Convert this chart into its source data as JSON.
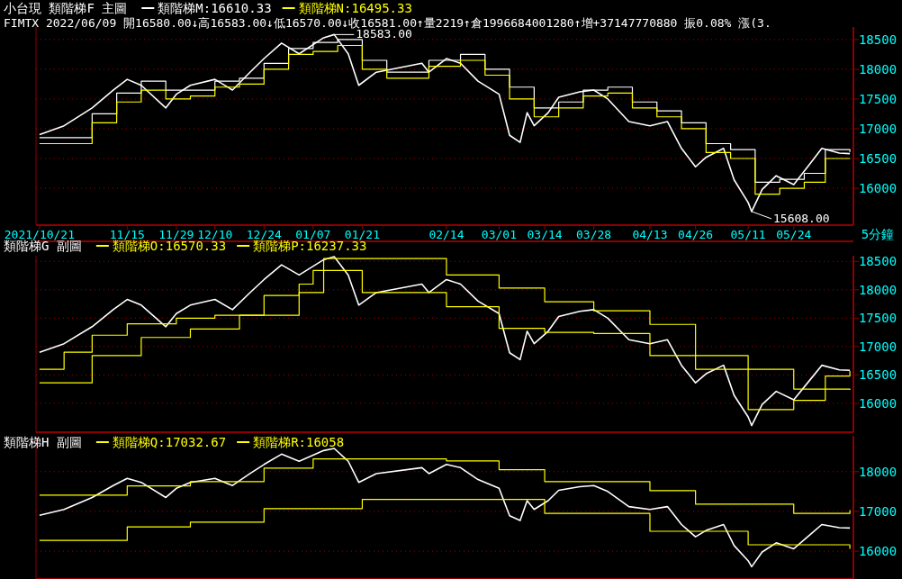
{
  "chart_data": [
    {
      "type": "line",
      "title": "小台現 類階梯F 主圖",
      "subtitle": "FIMTX 2022/06/09 開16580.00↓高16583.00↓低16570.00↓收16581.00↑量2219↑倉1996684001280↑增+37147770880 振0.08% 漲(3.",
      "xlabel": "5分鐘",
      "xlim": [
        "2021-10-20",
        "2022-06-10"
      ],
      "xticks": [
        {
          "value": "2021-10-21",
          "label": "2021/10/21"
        },
        {
          "value": "2021-11-15",
          "label": "11/15"
        },
        {
          "value": "2021-11-29",
          "label": "11/29"
        },
        {
          "value": "2021-12-10",
          "label": "12/10"
        },
        {
          "value": "2021-12-24",
          "label": "12/24"
        },
        {
          "value": "2022-01-07",
          "label": "01/07"
        },
        {
          "value": "2022-01-21",
          "label": "01/21"
        },
        {
          "value": "2022-02-14",
          "label": "02/14"
        },
        {
          "value": "2022-03-01",
          "label": "03/01"
        },
        {
          "value": "2022-03-14",
          "label": "03/14"
        },
        {
          "value": "2022-03-28",
          "label": "03/28"
        },
        {
          "value": "2022-04-13",
          "label": "04/13"
        },
        {
          "value": "2022-04-26",
          "label": "04/26"
        },
        {
          "value": "2022-05-11",
          "label": "05/11"
        },
        {
          "value": "2022-05-24",
          "label": "05/24"
        }
      ],
      "ylim": [
        15380,
        18710
      ],
      "yticks": [
        16000,
        16500,
        17000,
        17500,
        18000,
        18500
      ],
      "grid": "y",
      "legend": "top left",
      "annotations": [
        {
          "text": "18583.00",
          "x": "2022-01-13",
          "y": 18583
        },
        {
          "text": "15608.00",
          "x": "2022-05-12",
          "y": 15608
        }
      ],
      "series": [
        {
          "type": "line",
          "color": "#ffffff",
          "x": [
            "2021-10-21",
            "2021-10-28",
            "2021-11-05",
            "2021-11-11",
            "2021-11-15",
            "2021-11-19",
            "2021-11-26",
            "2021-11-29",
            "2021-12-03",
            "2021-12-10",
            "2021-12-15",
            "2021-12-20",
            "2021-12-24",
            "2021-12-29",
            "2022-01-03",
            "2022-01-10",
            "2022-01-13",
            "2022-01-17",
            "2022-01-20",
            "2022-01-25",
            "2022-02-07",
            "2022-02-09",
            "2022-02-14",
            "2022-02-18",
            "2022-02-23",
            "2022-03-01",
            "2022-03-04",
            "2022-03-07",
            "2022-03-09",
            "2022-03-11",
            "2022-03-15",
            "2022-03-18",
            "2022-03-24",
            "2022-03-28",
            "2022-04-01",
            "2022-04-07",
            "2022-04-13",
            "2022-04-18",
            "2022-04-22",
            "2022-04-26",
            "2022-04-29",
            "2022-05-04",
            "2022-05-07",
            "2022-05-11",
            "2022-05-12",
            "2022-05-15",
            "2022-05-19",
            "2022-05-24",
            "2022-05-29",
            "2022-06-01",
            "2022-06-06",
            "2022-06-09"
          ],
          "values": [
            16900,
            17050,
            17350,
            17650,
            17830,
            17730,
            17350,
            17580,
            17730,
            17830,
            17650,
            17950,
            18180,
            18440,
            18260,
            18530,
            18583,
            18260,
            17730,
            17950,
            18100,
            17950,
            18180,
            18100,
            17800,
            17580,
            16890,
            16770,
            17270,
            17050,
            17270,
            17530,
            17620,
            17650,
            17500,
            17120,
            17050,
            17120,
            16670,
            16360,
            16520,
            16670,
            16140,
            15760,
            15608,
            15980,
            16210,
            16060,
            16440,
            16670,
            16590,
            16581
          ]
        },
        {
          "type": "step",
          "name": "類階梯M:16610.33",
          "color": "#ffffff",
          "x": [
            "2021-10-21",
            "2021-11-05",
            "2021-11-12",
            "2021-11-19",
            "2021-11-26",
            "2021-12-03",
            "2021-12-10",
            "2021-12-17",
            "2021-12-24",
            "2021-12-31",
            "2022-01-07",
            "2022-01-14",
            "2022-01-21",
            "2022-01-28",
            "2022-02-09",
            "2022-02-18",
            "2022-02-25",
            "2022-03-04",
            "2022-03-11",
            "2022-03-18",
            "2022-03-25",
            "2022-04-01",
            "2022-04-08",
            "2022-04-15",
            "2022-04-22",
            "2022-04-29",
            "2022-05-06",
            "2022-05-13",
            "2022-05-20",
            "2022-05-27",
            "2022-06-02",
            "2022-06-09"
          ],
          "values": [
            16850,
            17250,
            17600,
            17800,
            17650,
            17650,
            17800,
            17850,
            18100,
            18350,
            18450,
            18500,
            18150,
            17950,
            18150,
            18250,
            18000,
            17700,
            17350,
            17450,
            17650,
            17700,
            17450,
            17300,
            17100,
            16750,
            16650,
            16100,
            16150,
            16250,
            16650,
            16610
          ]
        },
        {
          "type": "step",
          "name": "類階梯N:16495.33",
          "color": "#ffff00",
          "x": [
            "2021-10-21",
            "2021-11-05",
            "2021-11-12",
            "2021-11-19",
            "2021-11-26",
            "2021-12-03",
            "2021-12-10",
            "2021-12-17",
            "2021-12-24",
            "2021-12-31",
            "2022-01-07",
            "2022-01-14",
            "2022-01-21",
            "2022-01-28",
            "2022-02-09",
            "2022-02-18",
            "2022-02-25",
            "2022-03-04",
            "2022-03-11",
            "2022-03-18",
            "2022-03-25",
            "2022-04-01",
            "2022-04-08",
            "2022-04-15",
            "2022-04-22",
            "2022-04-29",
            "2022-05-06",
            "2022-05-13",
            "2022-05-20",
            "2022-05-27",
            "2022-06-02",
            "2022-06-09"
          ],
          "values": [
            16750,
            17100,
            17450,
            17650,
            17500,
            17550,
            17700,
            17750,
            18000,
            18250,
            18300,
            18400,
            18000,
            17850,
            18050,
            18150,
            17900,
            17500,
            17200,
            17350,
            17550,
            17600,
            17350,
            17200,
            17000,
            16600,
            16500,
            15900,
            16000,
            16100,
            16500,
            16495
          ]
        }
      ]
    },
    {
      "type": "line",
      "title": "類階梯G 副圖",
      "xlim": [
        "2021-10-20",
        "2022-06-10"
      ],
      "ylim": [
        15490,
        18600
      ],
      "yticks": [
        16000,
        16500,
        17000,
        17500,
        18000,
        18500
      ],
      "grid": "y",
      "legend": "top left",
      "tick_labels": "y",
      "series": [
        {
          "type": "line",
          "color": "#ffffff",
          "x": [
            "2021-10-21",
            "2021-10-28",
            "2021-11-05",
            "2021-11-11",
            "2021-11-15",
            "2021-11-19",
            "2021-11-26",
            "2021-11-29",
            "2021-12-03",
            "2021-12-10",
            "2021-12-15",
            "2021-12-20",
            "2021-12-24",
            "2021-12-29",
            "2022-01-03",
            "2022-01-10",
            "2022-01-13",
            "2022-01-17",
            "2022-01-20",
            "2022-01-25",
            "2022-02-07",
            "2022-02-09",
            "2022-02-14",
            "2022-02-18",
            "2022-02-23",
            "2022-03-01",
            "2022-03-04",
            "2022-03-07",
            "2022-03-09",
            "2022-03-11",
            "2022-03-15",
            "2022-03-18",
            "2022-03-24",
            "2022-03-28",
            "2022-04-01",
            "2022-04-07",
            "2022-04-13",
            "2022-04-18",
            "2022-04-22",
            "2022-04-26",
            "2022-04-29",
            "2022-05-04",
            "2022-05-07",
            "2022-05-11",
            "2022-05-12",
            "2022-05-15",
            "2022-05-19",
            "2022-05-24",
            "2022-05-29",
            "2022-06-01",
            "2022-06-06",
            "2022-06-09"
          ],
          "values": [
            16900,
            17050,
            17350,
            17650,
            17830,
            17730,
            17350,
            17580,
            17730,
            17830,
            17650,
            17950,
            18180,
            18440,
            18260,
            18530,
            18583,
            18260,
            17730,
            17950,
            18100,
            17950,
            18180,
            18100,
            17800,
            17580,
            16890,
            16770,
            17270,
            17050,
            17270,
            17530,
            17620,
            17650,
            17500,
            17120,
            17050,
            17120,
            16670,
            16360,
            16520,
            16670,
            16140,
            15760,
            15608,
            15980,
            16210,
            16060,
            16440,
            16670,
            16590,
            16581
          ]
        },
        {
          "type": "step",
          "name": "類階梯O:16570.33",
          "color": "#ffff00",
          "x": [
            "2021-10-21",
            "2021-10-28",
            "2021-11-05",
            "2021-11-15",
            "2021-11-29",
            "2021-12-10",
            "2021-12-24",
            "2022-01-03",
            "2022-01-07",
            "2022-01-21",
            "2022-02-14",
            "2022-03-01",
            "2022-03-14",
            "2022-03-28",
            "2022-04-13",
            "2022-04-26",
            "2022-05-11",
            "2022-05-24",
            "2022-06-02",
            "2022-06-09"
          ],
          "values": [
            16600,
            16900,
            17200,
            17400,
            17500,
            17550,
            17900,
            18100,
            18340,
            17950,
            17700,
            17320,
            17250,
            17230,
            16840,
            16600,
            15890,
            16050,
            16480,
            16570
          ]
        },
        {
          "type": "step",
          "name": "類階梯P:16237.33",
          "color": "#ffff00",
          "x": [
            "2021-10-21",
            "2021-11-05",
            "2021-11-19",
            "2021-12-03",
            "2021-12-17",
            "2022-01-03",
            "2022-01-10",
            "2022-02-14",
            "2022-03-01",
            "2022-03-14",
            "2022-03-28",
            "2022-04-13",
            "2022-04-26",
            "2022-05-11",
            "2022-05-24",
            "2022-06-09"
          ],
          "values": [
            16360,
            16840,
            17160,
            17310,
            17550,
            17950,
            18550,
            18260,
            18030,
            17790,
            17630,
            17390,
            16840,
            16600,
            16250,
            16237
          ]
        }
      ]
    },
    {
      "type": "line",
      "title": "類階梯H 副圖",
      "xlim": [
        "2021-10-20",
        "2022-06-10"
      ],
      "ylim": [
        15300,
        18900
      ],
      "yticks": [
        16000,
        17000,
        18000
      ],
      "grid": "y",
      "legend": "top left",
      "tick_labels": "y",
      "series": [
        {
          "type": "line",
          "color": "#ffffff",
          "x": [
            "2021-10-21",
            "2021-10-28",
            "2021-11-05",
            "2021-11-11",
            "2021-11-15",
            "2021-11-19",
            "2021-11-26",
            "2021-11-29",
            "2021-12-03",
            "2021-12-10",
            "2021-12-15",
            "2021-12-20",
            "2021-12-24",
            "2021-12-29",
            "2022-01-03",
            "2022-01-10",
            "2022-01-13",
            "2022-01-17",
            "2022-01-20",
            "2022-01-25",
            "2022-02-07",
            "2022-02-09",
            "2022-02-14",
            "2022-02-18",
            "2022-02-23",
            "2022-03-01",
            "2022-03-04",
            "2022-03-07",
            "2022-03-09",
            "2022-03-11",
            "2022-03-15",
            "2022-03-18",
            "2022-03-24",
            "2022-03-28",
            "2022-04-01",
            "2022-04-07",
            "2022-04-13",
            "2022-04-18",
            "2022-04-22",
            "2022-04-26",
            "2022-04-29",
            "2022-05-04",
            "2022-05-07",
            "2022-05-11",
            "2022-05-12",
            "2022-05-15",
            "2022-05-19",
            "2022-05-24",
            "2022-05-29",
            "2022-06-01",
            "2022-06-06",
            "2022-06-09"
          ],
          "values": [
            16900,
            17050,
            17350,
            17650,
            17830,
            17730,
            17350,
            17580,
            17730,
            17830,
            17650,
            17950,
            18180,
            18440,
            18260,
            18530,
            18583,
            18260,
            17730,
            17950,
            18100,
            17950,
            18180,
            18100,
            17800,
            17580,
            16890,
            16770,
            17270,
            17050,
            17270,
            17530,
            17620,
            17650,
            17500,
            17120,
            17050,
            17120,
            16670,
            16360,
            16520,
            16670,
            16140,
            15760,
            15608,
            15980,
            16210,
            16060,
            16440,
            16670,
            16590,
            16581
          ]
        },
        {
          "type": "step",
          "name": "類階梯Q:17032.67",
          "color": "#ffff00",
          "x": [
            "2021-10-21",
            "2021-11-15",
            "2021-12-03",
            "2021-12-24",
            "2022-01-07",
            "2022-02-14",
            "2022-03-01",
            "2022-03-14",
            "2022-04-13",
            "2022-04-26",
            "2022-05-24",
            "2022-06-09"
          ],
          "values": [
            17410,
            17640,
            17750,
            18090,
            18320,
            18270,
            18050,
            17750,
            17520,
            17180,
            16950,
            17032
          ]
        },
        {
          "type": "step",
          "name": "類階梯R:16058",
          "color": "#ffff00",
          "x": [
            "2021-10-21",
            "2021-11-15",
            "2021-12-03",
            "2021-12-24",
            "2022-01-21",
            "2022-02-14",
            "2022-03-14",
            "2022-04-13",
            "2022-05-11",
            "2022-06-09"
          ],
          "values": [
            16270,
            16610,
            16730,
            17070,
            17300,
            17300,
            16950,
            16500,
            16160,
            16058
          ]
        }
      ]
    }
  ]
}
